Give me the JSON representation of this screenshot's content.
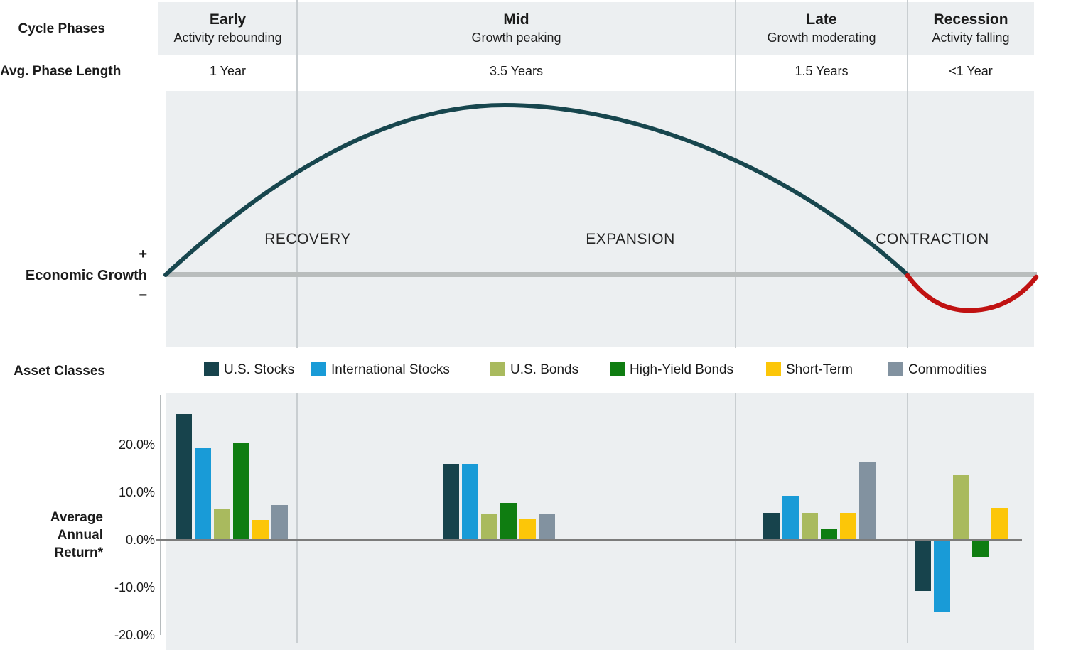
{
  "header": {
    "row_label": "Cycle Phases",
    "length_row_label": "Avg. Phase Length",
    "phases": [
      {
        "name": "Early",
        "desc": "Activity rebounding",
        "length": "1 Year"
      },
      {
        "name": "Mid",
        "desc": "Growth peaking",
        "length": "3.5 Years"
      },
      {
        "name": "Late",
        "desc": "Growth moderating",
        "length": "1.5 Years"
      },
      {
        "name": "Recession",
        "desc": "Activity falling",
        "length": "<1 Year"
      }
    ]
  },
  "growth_section": {
    "plus": "+",
    "label": "Economic Growth",
    "minus": "−",
    "stage_labels": [
      "RECOVERY",
      "EXPANSION",
      "CONTRACTION"
    ],
    "growth_curve_color": "#17464e",
    "recession_curve_color": "#c01212",
    "baseline_color": "#b9bdbd"
  },
  "legend": {
    "label": "Asset Classes"
  },
  "chart_data": {
    "type": "bar",
    "categories": [
      "Early",
      "Mid",
      "Late",
      "Recession"
    ],
    "series": [
      {
        "name": "U.S. Stocks",
        "color": "#17434c",
        "values": [
          26.5,
          16.0,
          5.8,
          -10.5
        ]
      },
      {
        "name": "International Stocks",
        "color": "#199bd7",
        "values": [
          19.3,
          16.0,
          9.4,
          -15.0
        ]
      },
      {
        "name": "U.S. Bonds",
        "color": "#a9ba5e",
        "values": [
          6.5,
          5.5,
          5.8,
          13.7
        ]
      },
      {
        "name": "High-Yield Bonds",
        "color": "#0f7d11",
        "values": [
          20.4,
          7.9,
          2.4,
          -3.4
        ]
      },
      {
        "name": "Short-Term",
        "color": "#fcc608",
        "values": [
          4.3,
          4.6,
          5.8,
          6.9
        ]
      },
      {
        "name": "Commodities",
        "color": "#8292a0",
        "values": [
          7.4,
          5.5,
          16.4,
          null
        ]
      }
    ],
    "ylabel_lines": [
      "Average",
      "Annual",
      "Return*"
    ],
    "yticks": [
      {
        "label": "20.0%",
        "value": 20
      },
      {
        "label": "10.0%",
        "value": 10
      },
      {
        "label": "0.0%",
        "value": 0
      },
      {
        "label": "-10.0%",
        "value": -10
      },
      {
        "label": "-20.0%",
        "value": -20
      }
    ],
    "ylim": [
      -22,
      28
    ],
    "grid": false,
    "legend_position": "top"
  }
}
